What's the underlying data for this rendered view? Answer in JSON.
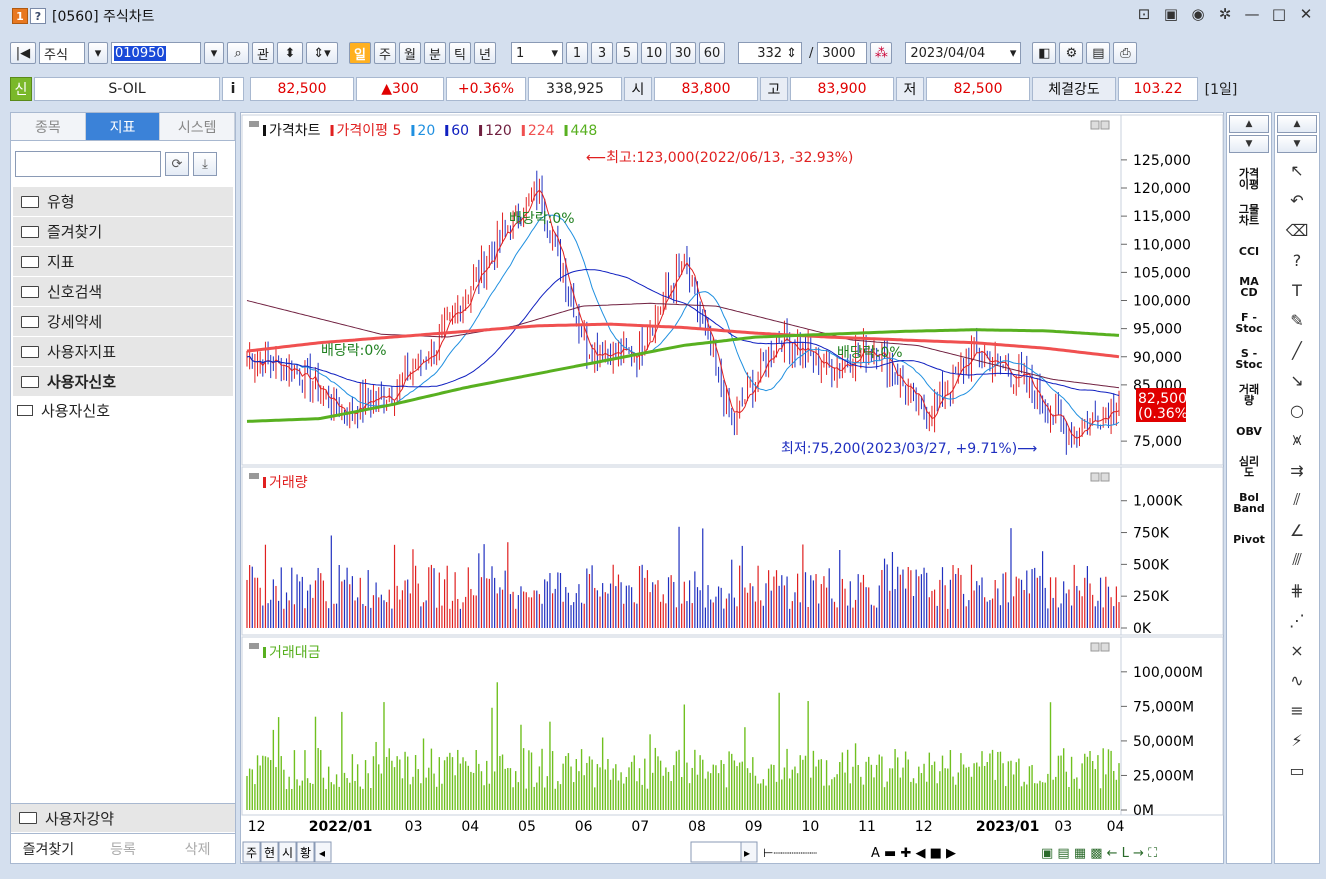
{
  "window": {
    "num_badge": "1",
    "help_badge": "?",
    "title": "[0560] 주식차트",
    "icons": [
      "ⓜ",
      "▣",
      "☉",
      "✸",
      "—",
      "□",
      "✕"
    ]
  },
  "toolbar": {
    "market": "주식",
    "code": "010950",
    "gwan": "관",
    "period_buttons": [
      "일",
      "주",
      "월",
      "분",
      "틱",
      "년"
    ],
    "interval": "1",
    "num_buttons": [
      "1",
      "3",
      "5",
      "10",
      "30",
      "60"
    ],
    "count": "332",
    "total": "3000",
    "date": "2023/04/04"
  },
  "info": {
    "badge": "신",
    "name": "S-OIL",
    "i": "i",
    "price": "82,500",
    "change": "▲300",
    "pct": "+0.36%",
    "volume": "338,925",
    "open_lab": "시",
    "open": "83,800",
    "high_lab": "고",
    "high": "83,900",
    "low_lab": "저",
    "low": "82,500",
    "strength_lab": "체결강도",
    "strength": "103.22",
    "period": "[1일]"
  },
  "sidebar": {
    "tabs": [
      "종목",
      "지표",
      "시스템"
    ],
    "folders": [
      "유형",
      "즐겨찾기",
      "지표",
      "신호검색",
      "강세약세",
      "사용자지표",
      "사용자신호"
    ],
    "sub": "사용자신호",
    "bottom_folder": "사용자강약",
    "bottom_buttons": [
      "즐겨찾기",
      "등록",
      "삭제"
    ]
  },
  "indicators": [
    "가격\n이평",
    "그물\n차트",
    "CCI",
    "MA\nCD",
    "F -\nStoc",
    "S -\nStoc",
    "거래\n량",
    "OBV",
    "심리\n도",
    "Bol\nBand",
    "Pivot"
  ],
  "chart_data": [
    {
      "type": "line",
      "title": "가격차트",
      "legend": [
        "가격차트",
        "가격이평 5",
        "20",
        "60",
        "120",
        "224",
        "448"
      ],
      "ylim": [
        72000,
        128000
      ],
      "yticks": [
        "125,000",
        "120,000",
        "115,000",
        "110,000",
        "105,000",
        "100,000",
        "95,000",
        "90,000",
        "85,000",
        "75,000"
      ],
      "current_label": "82,500",
      "current_pct": "(0.36%)",
      "high_note": "최고:123,000(2022/06/13, -32.93%)",
      "low_note": "최저:75,200(2023/03/27, +9.71%)",
      "div_notes": [
        "배당락:0%",
        "배당락:0%",
        "배당락:0%"
      ],
      "ma224_values": [
        91000,
        92500,
        93500,
        94500,
        95500,
        95800,
        95200,
        94200,
        93500,
        93000,
        92500,
        91500,
        90000
      ],
      "ma448_values": [
        78500,
        79000,
        81500,
        84500,
        87000,
        89500,
        92000,
        93500,
        94000,
        94500,
        94800,
        94600,
        93800
      ],
      "price_values": [
        90000,
        88000,
        80000,
        84000,
        93000,
        108000,
        120000,
        92000,
        90000,
        107000,
        78000,
        94000,
        88000,
        92000,
        79000,
        91000,
        86000,
        76000,
        82500
      ]
    },
    {
      "type": "bar",
      "title": "거래량",
      "yticks": [
        "1,000K",
        "750K",
        "500K",
        "250K",
        "0K"
      ]
    },
    {
      "type": "bar",
      "title": "거래대금",
      "yticks": [
        "100,000M",
        "75,000M",
        "50,000M",
        "25,000M",
        "0M"
      ]
    }
  ],
  "xaxis": [
    "12",
    "2022/01",
    "03",
    "04",
    "05",
    "06",
    "07",
    "08",
    "09",
    "10",
    "11",
    "12",
    "2023/01",
    "03",
    "04"
  ],
  "bottom_tabs": [
    "주",
    "현",
    "시",
    "황"
  ],
  "colors": {
    "ma5": "#e02020",
    "ma20": "#2090e0",
    "ma60": "#1020c0",
    "ma120": "#702040",
    "ma224": "#f05050",
    "ma448": "#58b020",
    "vol_up": "#e02020",
    "vol_down": "#2030c0",
    "amount": "#70c020"
  }
}
